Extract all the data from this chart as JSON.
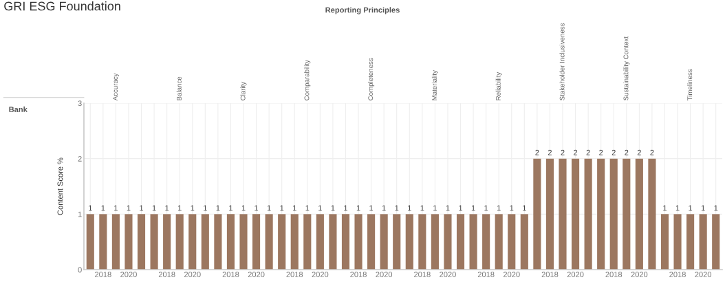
{
  "chart_data": {
    "type": "bar",
    "title": "GRI ESG Foundation",
    "categories": [
      null,
      "2018",
      null,
      "2020",
      null,
      null,
      "2018",
      null,
      "2020",
      null,
      null,
      "2018",
      null,
      "2020",
      null,
      null,
      "2018",
      null,
      "2020",
      null,
      null,
      "2018",
      null,
      "2020",
      null,
      null,
      "2018",
      null,
      "2020",
      null,
      null,
      "2018",
      null,
      "2020",
      null,
      null,
      "2018",
      null,
      "2020",
      null,
      null,
      "2018",
      null,
      "2020",
      null,
      null,
      "2018",
      null,
      "2020",
      null
    ],
    "values": [
      1,
      1,
      1,
      1,
      1,
      1,
      1,
      1,
      1,
      1,
      1,
      1,
      1,
      1,
      1,
      1,
      1,
      1,
      1,
      1,
      1,
      1,
      1,
      1,
      1,
      1,
      1,
      1,
      1,
      1,
      1,
      1,
      1,
      1,
      1,
      2,
      2,
      2,
      2,
      2,
      2,
      2,
      2,
      2,
      2,
      1,
      1,
      1,
      1,
      1
    ],
    "color": "#9c7760",
    "ylim": [
      0,
      3
    ],
    "yticks": [
      0,
      1,
      2,
      3
    ],
    "ylabel": "Content Score %",
    "grid": true,
    "data_labels": true,
    "annotations": [
      "Reporting Principles",
      "Bank",
      "Accuracy",
      "Balance",
      "Clarity",
      "Comparability",
      "Completeness",
      "Materiality",
      "Reliability",
      "Stakeholder Inclusiveness",
      "Sustainability Context",
      "Timeliness"
    ]
  }
}
